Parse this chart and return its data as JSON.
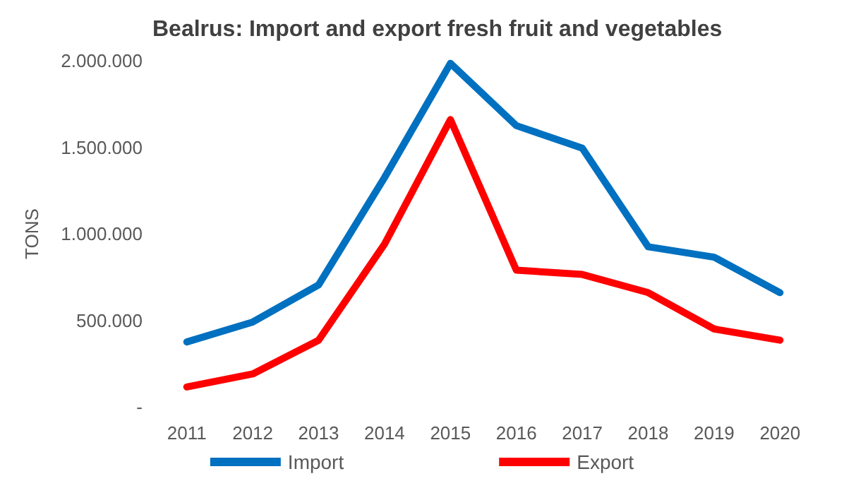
{
  "chart_data": {
    "type": "line",
    "title": "Bealrus: Import and export fresh fruit and vegetables",
    "ylabel": "TONS",
    "categories": [
      "2011",
      "2012",
      "2013",
      "2014",
      "2015",
      "2016",
      "2017",
      "2018",
      "2019",
      "2020"
    ],
    "series": [
      {
        "name": "Import",
        "color": "#0070c0",
        "values": [
          375000,
          490000,
          705000,
          1325000,
          1985000,
          1625000,
          1495000,
          925000,
          865000,
          660000
        ]
      },
      {
        "name": "Export",
        "color": "#ff0000",
        "values": [
          115000,
          190000,
          385000,
          940000,
          1660000,
          790000,
          765000,
          660000,
          450000,
          385000
        ]
      }
    ],
    "ylim": [
      0,
      2000000
    ],
    "yticks": [
      {
        "value": 0,
        "label": "-"
      },
      {
        "value": 500000,
        "label": "500.000"
      },
      {
        "value": 1000000,
        "label": "1.000.000"
      },
      {
        "value": 1500000,
        "label": "1.500.000"
      },
      {
        "value": 2000000,
        "label": "2.000.000"
      }
    ],
    "grid": false,
    "legend": "bottom",
    "marker": "none",
    "line_style": "solid"
  }
}
